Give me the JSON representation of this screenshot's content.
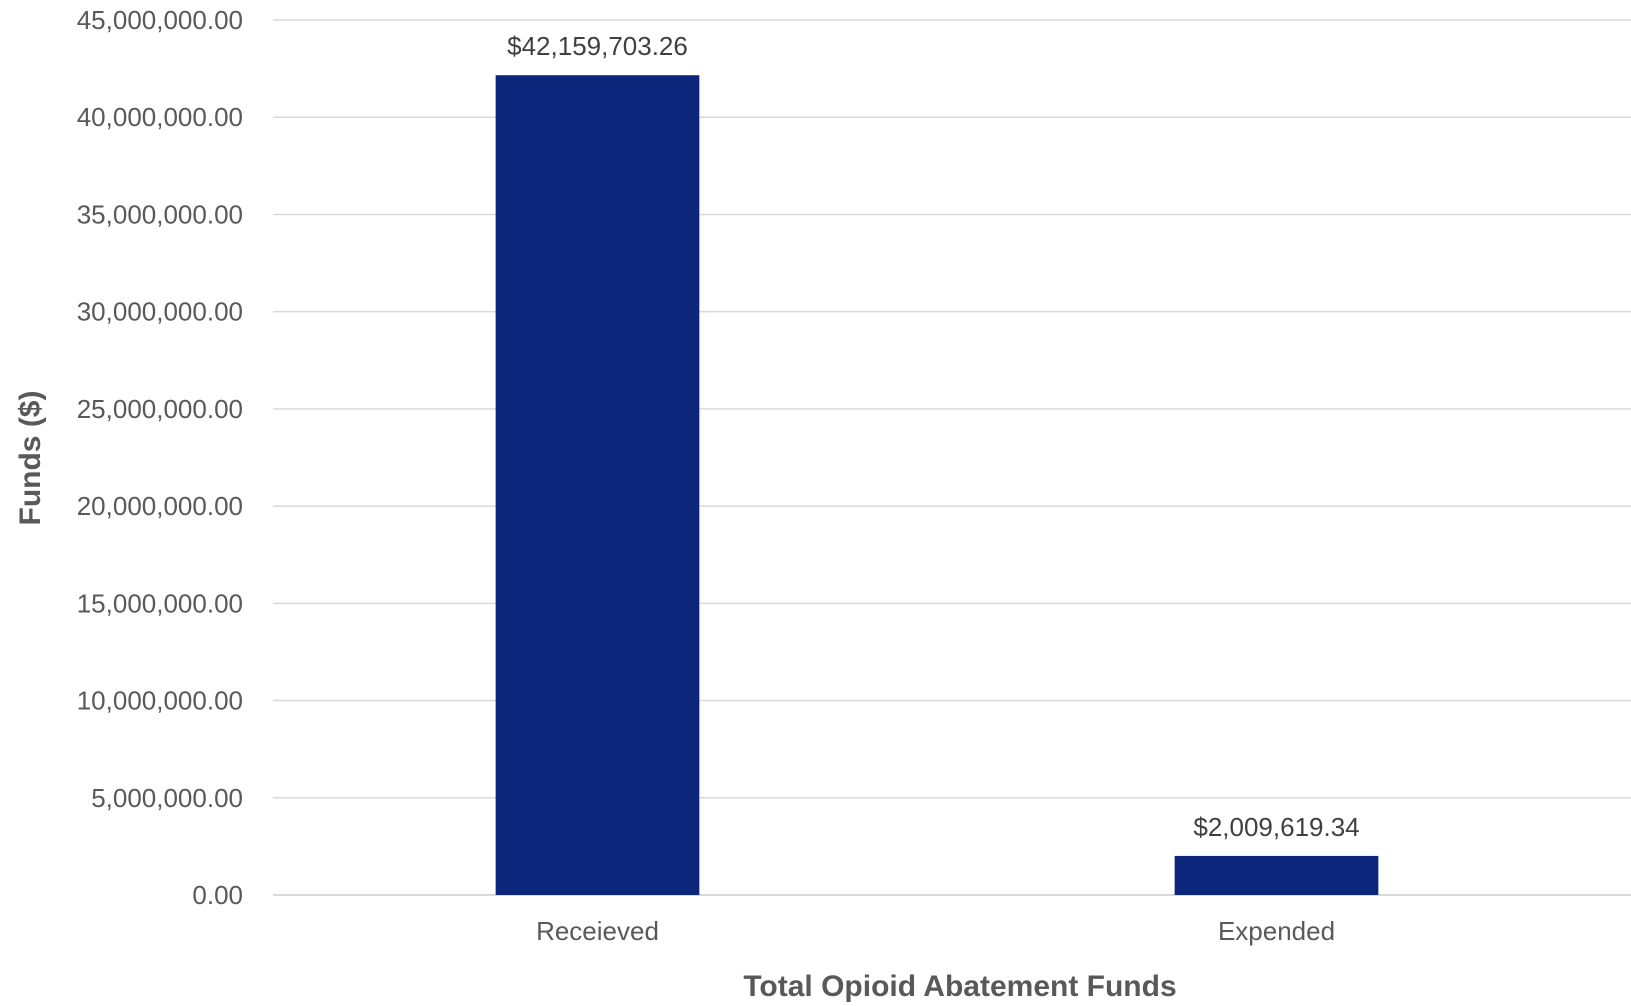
{
  "chart_data": {
    "type": "bar",
    "categories": [
      "Receieved",
      "Expended"
    ],
    "values": [
      42159703.26,
      2009619.34
    ],
    "data_labels": [
      "$42,159,703.26",
      "$2,009,619.34"
    ],
    "xlabel": "Total Opioid Abatement Funds",
    "ylabel": "Funds ($)",
    "ylim": [
      0,
      45000000
    ],
    "yticks": [
      0,
      5000000,
      10000000,
      15000000,
      20000000,
      25000000,
      30000000,
      35000000,
      40000000,
      45000000
    ],
    "ytick_labels": [
      "0.00",
      "5,000,000.00",
      "10,000,000.00",
      "15,000,000.00",
      "20,000,000.00",
      "25,000,000.00",
      "30,000,000.00",
      "35,000,000.00",
      "40,000,000.00",
      "45,000,000.00"
    ],
    "grid": true,
    "legend": "none",
    "bar_color": "#0b267a"
  }
}
